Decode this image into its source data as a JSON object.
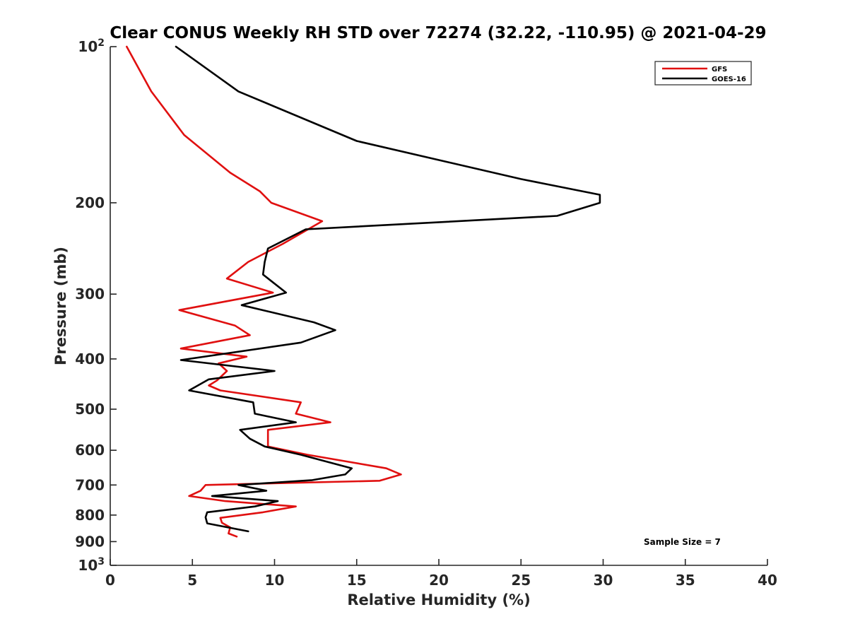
{
  "chart_data": {
    "type": "line",
    "title": "Clear CONUS Weekly RH STD over 72274 (32.22, -110.95) @ 2021-04-29",
    "xlabel": "Relative Humidity (%)",
    "ylabel": "Pressure (mb)",
    "xlim": [
      0,
      40
    ],
    "ylim": [
      100,
      1000
    ],
    "y_scale": "log",
    "y_reversed": true,
    "grid": false,
    "legend_position": "top-right",
    "x_ticks": [
      "0",
      "5",
      "10",
      "15",
      "20",
      "25",
      "30",
      "35",
      "40"
    ],
    "y_ticks": [
      {
        "value": 100,
        "base": "10",
        "exp": "2"
      },
      {
        "value": 200,
        "label": "200"
      },
      {
        "value": 300,
        "label": "300"
      },
      {
        "value": 400,
        "label": "400"
      },
      {
        "value": 500,
        "label": "500"
      },
      {
        "value": 600,
        "label": "600"
      },
      {
        "value": 700,
        "label": "700"
      },
      {
        "value": 800,
        "label": "800"
      },
      {
        "value": 900,
        "label": "900"
      },
      {
        "value": 1000,
        "base": "10",
        "exp": "3"
      }
    ],
    "annotation": "Sample Size = 7",
    "series": [
      {
        "name": "GFS",
        "color": "#e01010",
        "points": [
          [
            1.0,
            100
          ],
          [
            2.5,
            122
          ],
          [
            4.5,
            148
          ],
          [
            7.3,
            175
          ],
          [
            9.1,
            190
          ],
          [
            9.8,
            200
          ],
          [
            12.9,
            217
          ],
          [
            10.5,
            240
          ],
          [
            8.4,
            260
          ],
          [
            7.1,
            280
          ],
          [
            9.9,
            298
          ],
          [
            4.2,
            322
          ],
          [
            7.6,
            345
          ],
          [
            8.5,
            360
          ],
          [
            4.3,
            382
          ],
          [
            8.3,
            396
          ],
          [
            6.6,
            408
          ],
          [
            7.1,
            422
          ],
          [
            6.5,
            440
          ],
          [
            6.0,
            450
          ],
          [
            6.7,
            460
          ],
          [
            11.6,
            485
          ],
          [
            11.3,
            510
          ],
          [
            13.4,
            530
          ],
          [
            9.6,
            548
          ],
          [
            9.6,
            590
          ],
          [
            12.0,
            612
          ],
          [
            16.8,
            650
          ],
          [
            17.7,
            668
          ],
          [
            16.4,
            687
          ],
          [
            5.8,
            700
          ],
          [
            5.5,
            718
          ],
          [
            4.8,
            735
          ],
          [
            7.0,
            752
          ],
          [
            11.3,
            770
          ],
          [
            9.3,
            790
          ],
          [
            6.7,
            810
          ],
          [
            6.8,
            828
          ],
          [
            7.3,
            845
          ],
          [
            7.2,
            868
          ],
          [
            7.7,
            880
          ]
        ]
      },
      {
        "name": "GOES-16",
        "color": "#000000",
        "points": [
          [
            4.0,
            100
          ],
          [
            7.8,
            122
          ],
          [
            15.0,
            152
          ],
          [
            25.0,
            180
          ],
          [
            29.8,
            193
          ],
          [
            29.8,
            200
          ],
          [
            27.2,
            212
          ],
          [
            11.9,
            225
          ],
          [
            9.6,
            245
          ],
          [
            9.4,
            260
          ],
          [
            9.3,
            275
          ],
          [
            10.7,
            298
          ],
          [
            8.0,
            315
          ],
          [
            12.4,
            340
          ],
          [
            13.7,
            352
          ],
          [
            11.6,
            372
          ],
          [
            4.3,
            402
          ],
          [
            10.0,
            422
          ],
          [
            6.0,
            438
          ],
          [
            4.8,
            460
          ],
          [
            8.7,
            485
          ],
          [
            8.8,
            510
          ],
          [
            11.3,
            530
          ],
          [
            7.9,
            548
          ],
          [
            8.5,
            570
          ],
          [
            9.4,
            590
          ],
          [
            11.6,
            612
          ],
          [
            14.7,
            650
          ],
          [
            14.3,
            668
          ],
          [
            12.3,
            685
          ],
          [
            7.8,
            700
          ],
          [
            9.5,
            718
          ],
          [
            6.2,
            735
          ],
          [
            10.2,
            752
          ],
          [
            8.8,
            770
          ],
          [
            5.9,
            790
          ],
          [
            5.8,
            808
          ],
          [
            5.9,
            830
          ],
          [
            8.4,
            860
          ]
        ]
      }
    ]
  }
}
